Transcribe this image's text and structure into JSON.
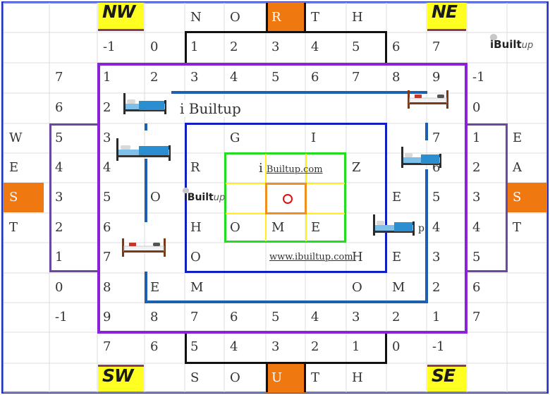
{
  "corners": {
    "nw": "NW",
    "ne": "NE",
    "sw": "SW",
    "se": "SE"
  },
  "rows": [
    [
      "",
      "",
      "",
      "",
      "N",
      "O",
      "R",
      "T",
      "H",
      "",
      "",
      "",
      "",
      ""
    ],
    [
      "",
      "",
      "-1",
      "0",
      "1",
      "2",
      "3",
      "4",
      "5",
      "6",
      "7",
      "",
      "",
      ""
    ],
    [
      "",
      "7",
      "1",
      "2",
      "3",
      "4",
      "5",
      "6",
      "7",
      "8",
      "9",
      "-1",
      "",
      ""
    ],
    [
      "",
      "6",
      "2",
      "",
      "",
      "",
      "",
      "",
      "",
      "",
      "",
      "0",
      "",
      ""
    ],
    [
      "W",
      "5",
      "3",
      "",
      "",
      "G",
      "",
      "I",
      "",
      "",
      "7",
      "1",
      "E",
      ""
    ],
    [
      "E",
      "4",
      "4",
      "",
      "R",
      "",
      "",
      "",
      "Z",
      "",
      "6",
      "2",
      "A",
      ""
    ],
    [
      "S",
      "3",
      "5",
      "O",
      "",
      "",
      "",
      "",
      "",
      "E",
      "5",
      "3",
      "S",
      ""
    ],
    [
      "T",
      "2",
      "6",
      "",
      "H",
      "O",
      "M",
      "E",
      "",
      "",
      "4",
      "4",
      "T",
      ""
    ],
    [
      "",
      "1",
      "7",
      "",
      "O",
      "",
      "",
      "",
      "H",
      "E",
      "3",
      "5",
      "",
      ""
    ],
    [
      "",
      "0",
      "8",
      "E",
      "M",
      "",
      "",
      "",
      "O",
      "M",
      "2",
      "6",
      "",
      ""
    ],
    [
      "",
      "-1",
      "9",
      "8",
      "7",
      "6",
      "5",
      "4",
      "3",
      "2",
      "1",
      "7",
      "",
      ""
    ],
    [
      "",
      "",
      "7",
      "6",
      "5",
      "4",
      "3",
      "2",
      "1",
      "0",
      "-1",
      "",
      "",
      ""
    ],
    [
      "",
      "",
      "",
      "",
      "S",
      "O",
      "U",
      "T",
      "H",
      "",
      "",
      "",
      "",
      ""
    ]
  ],
  "brand": {
    "title": "i Builtup",
    "top_logo": "iBuilt",
    "top_logo_suffix": "up",
    "center_logo": "iBuilt",
    "center_logo_suffix": "up",
    "link_prefix": "i",
    "link1": "Builtup.com",
    "link2": "www.ibuiltup.com",
    "stray_letter": "p"
  },
  "icons": [
    "bed-icon",
    "center-mark-icon",
    "bulb-icon"
  ],
  "colors": {
    "frame": "#1f2fbf",
    "orange": "#f07810",
    "yellow": "#ffff22",
    "purple": "#8a22d8",
    "blue": "#1020c0",
    "green": "#22dd22",
    "ring_orange": "#f09020",
    "accent_blue": "#1e5fb0",
    "violet": "#6a4aa0"
  }
}
